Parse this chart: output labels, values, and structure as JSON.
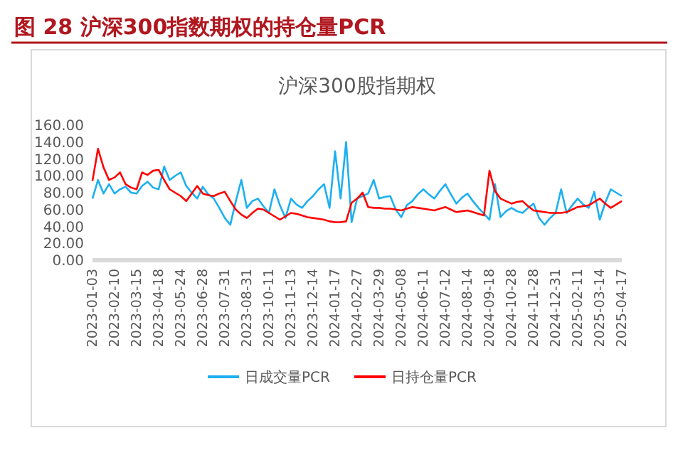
{
  "chart_data": {
    "type": "line",
    "title": "图 28 沪深300指数期权的持仓量PCR",
    "subtitle": "沪深300股指期权",
    "categories": [
      "2023-01-03",
      null,
      null,
      null,
      "2023-02-10",
      null,
      null,
      null,
      "2023-03-15",
      null,
      null,
      null,
      "2023-04-18",
      null,
      null,
      null,
      "2023-05-24",
      null,
      null,
      null,
      "2023-06-28",
      null,
      null,
      null,
      "2023-07-31",
      null,
      null,
      null,
      "2023-08-31",
      null,
      null,
      null,
      "2023-10-11",
      null,
      null,
      null,
      "2023-11-13",
      null,
      null,
      null,
      "2023-12-14",
      null,
      null,
      null,
      "2024-01-17",
      null,
      null,
      null,
      "2024-02-27",
      null,
      null,
      null,
      "2024-03-29",
      null,
      null,
      null,
      "2024-05-08",
      null,
      null,
      null,
      "2024-06-11",
      null,
      null,
      null,
      "2024-07-12",
      null,
      null,
      null,
      "2024-08-14",
      null,
      null,
      null,
      "2024-09-18",
      null,
      null,
      null,
      "2024-10-28",
      null,
      null,
      null,
      "2024-11-28",
      null,
      null,
      null,
      "2024-12-31",
      null,
      null,
      null,
      "2025-02-11",
      null,
      null,
      null,
      "2025-03-14",
      null,
      null,
      null,
      "2025-04-17"
    ],
    "series": [
      {
        "name": "日成交量PCR",
        "color": "#1cb0f0",
        "values": [
          73,
          95,
          79,
          90,
          79,
          84,
          87,
          80,
          79,
          88,
          93,
          86,
          84,
          111,
          95,
          100,
          104,
          88,
          80,
          73,
          87,
          78,
          73,
          62,
          50,
          42,
          70,
          95,
          62,
          70,
          73,
          64,
          56,
          84,
          65,
          50,
          73,
          66,
          62,
          70,
          76,
          84,
          90,
          62,
          129,
          73,
          140,
          45,
          73,
          76,
          79,
          95,
          73,
          75,
          76,
          60,
          51,
          65,
          70,
          78,
          84,
          78,
          73,
          82,
          90,
          78,
          67,
          74,
          79,
          70,
          62,
          55,
          48,
          90,
          51,
          58,
          62,
          58,
          56,
          62,
          67,
          50,
          42,
          50,
          56,
          84,
          56,
          65,
          73,
          66,
          62,
          81,
          48,
          68,
          84,
          80,
          76
        ]
      },
      {
        "name": "日持仓量PCR",
        "color": "#ff0000",
        "values": [
          94,
          132,
          110,
          95,
          98,
          104,
          90,
          86,
          84,
          104,
          101,
          106,
          107,
          95,
          84,
          80,
          76,
          70,
          79,
          88,
          79,
          77,
          76,
          79,
          81,
          70,
          60,
          54,
          50,
          56,
          61,
          60,
          56,
          52,
          48,
          52,
          56,
          55,
          53,
          51,
          50,
          49,
          48,
          46,
          45,
          45,
          46,
          68,
          73,
          80,
          63,
          62,
          62,
          61,
          61,
          60,
          59,
          61,
          63,
          62,
          61,
          60,
          59,
          61,
          63,
          60,
          57,
          58,
          59,
          57,
          55,
          53,
          106,
          82,
          73,
          70,
          67,
          69,
          70,
          64,
          59,
          58,
          57,
          56,
          56,
          56,
          57,
          60,
          63,
          64,
          65,
          69,
          73,
          67,
          62,
          66,
          70
        ]
      }
    ],
    "ylim": [
      0,
      160
    ],
    "yticks": [
      {
        "value": 0,
        "label": "0.00"
      },
      {
        "value": 20,
        "label": "20.00"
      },
      {
        "value": 40,
        "label": "40.00"
      },
      {
        "value": 60,
        "label": "60.00"
      },
      {
        "value": 80,
        "label": "80.00"
      },
      {
        "value": 100,
        "label": "100.00"
      },
      {
        "value": 120,
        "label": "120.00"
      },
      {
        "value": 140,
        "label": "140.00"
      },
      {
        "value": 160,
        "label": "160.00"
      }
    ],
    "grid": false,
    "legend": "bottom",
    "marker": "none",
    "line_style": "solid"
  }
}
